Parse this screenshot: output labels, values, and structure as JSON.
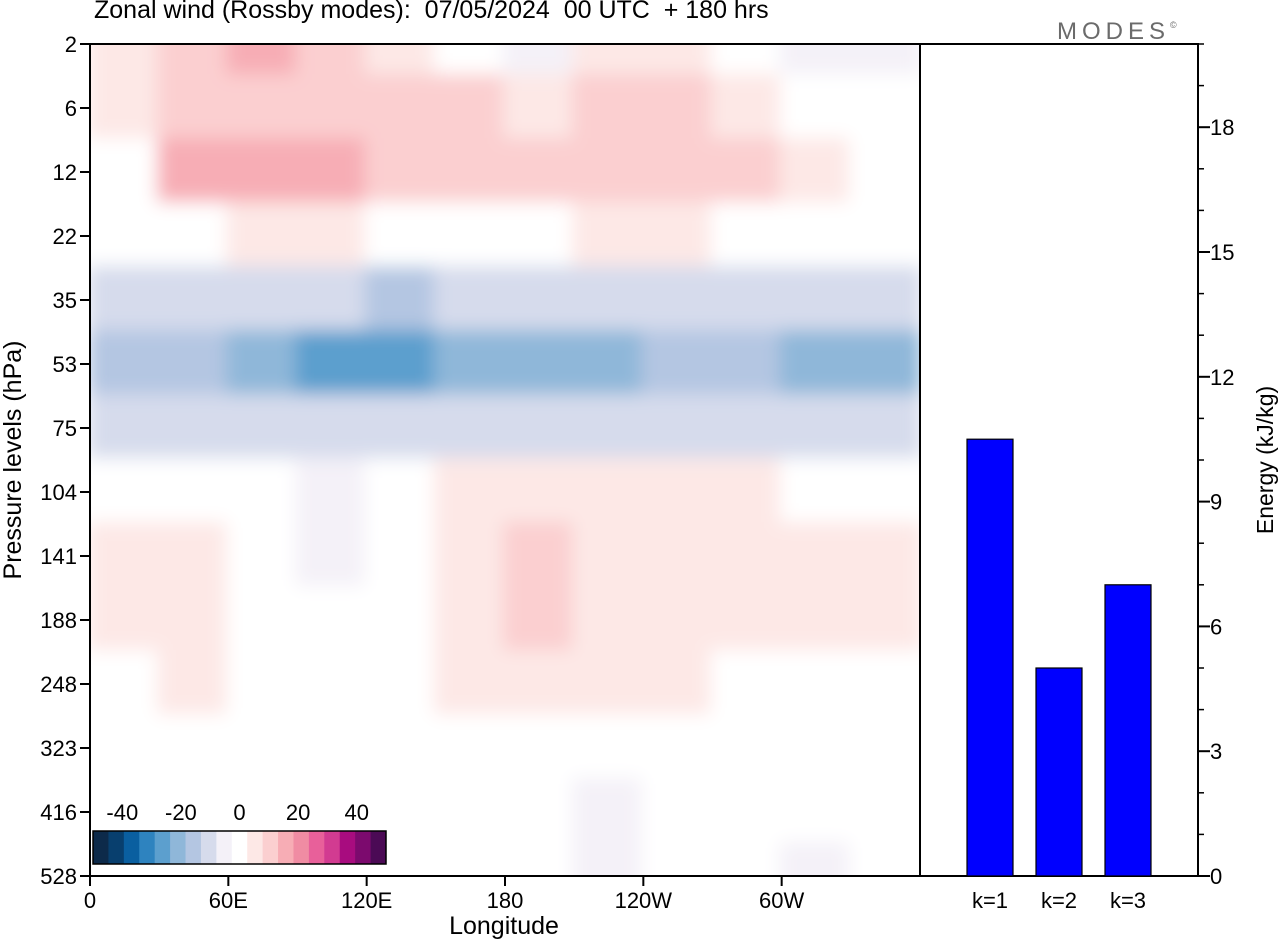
{
  "title": "Zonal wind (Rossby modes):  07/05/2024  00 UTC  + 180 hrs",
  "logo": {
    "text": "MODES",
    "mark": "©"
  },
  "chart_data": [
    {
      "type": "heatmap",
      "title": "Zonal wind (Rossby modes):  07/05/2024  00 UTC  + 180 hrs",
      "xlabel": "Longitude",
      "ylabel": "Pressure levels (hPa)",
      "x_ticks": [
        "0",
        "60E",
        "120E",
        "180",
        "120W",
        "60W"
      ],
      "x_tick_deg": [
        0,
        60,
        120,
        180,
        240,
        300
      ],
      "xlim_deg": [
        0,
        360
      ],
      "y_ticks": [
        "2",
        "6",
        "12",
        "22",
        "35",
        "53",
        "75",
        "104",
        "141",
        "188",
        "248",
        "323",
        "416",
        "528"
      ],
      "y_scale": "level-index",
      "colorbar": {
        "ticks": [
          "-40",
          "-20",
          "0",
          "20",
          "40"
        ],
        "tick_values": [
          -40,
          -20,
          0,
          20,
          40
        ],
        "range": [
          -50,
          50
        ],
        "colors": [
          "#0d2a4a",
          "#083f6e",
          "#0a5fa0",
          "#2e83bf",
          "#5c9fce",
          "#8fb7d9",
          "#b4c6e2",
          "#d6dbec",
          "#f4f1f8",
          "#ffffff",
          "#fde8e6",
          "#fbcfd0",
          "#f7adb5",
          "#f08ca3",
          "#e8609a",
          "#d23b91",
          "#a80c7f",
          "#7c0a6e",
          "#4b0a55"
        ]
      },
      "field_bands": [
        {
          "level": "2",
          "u": [
            6,
            12,
            14,
            8,
            4,
            -2,
            -6,
            4,
            6,
            2,
            -4,
            -6
          ]
        },
        {
          "level": "6",
          "u": [
            4,
            10,
            12,
            10,
            10,
            8,
            6,
            8,
            8,
            6,
            2,
            0
          ]
        },
        {
          "level": "12",
          "u": [
            2,
            14,
            16,
            16,
            10,
            8,
            8,
            10,
            10,
            8,
            4,
            2
          ]
        },
        {
          "level": "22",
          "u": [
            0,
            2,
            4,
            4,
            2,
            2,
            2,
            4,
            4,
            2,
            0,
            -2
          ]
        },
        {
          "level": "35",
          "u": [
            -12,
            -12,
            -12,
            -12,
            -14,
            -12,
            -12,
            -12,
            -12,
            -12,
            -12,
            -12
          ]
        },
        {
          "level": "53",
          "u": [
            -16,
            -18,
            -20,
            -28,
            -26,
            -22,
            -20,
            -20,
            -18,
            -18,
            -20,
            -20
          ]
        },
        {
          "level": "75",
          "u": [
            -8,
            -12,
            -12,
            -12,
            -12,
            -10,
            -10,
            -10,
            -10,
            -12,
            -12,
            -12
          ]
        },
        {
          "level": "104",
          "u": [
            2,
            2,
            -2,
            -6,
            0,
            4,
            6,
            4,
            4,
            6,
            2,
            2
          ]
        },
        {
          "level": "141",
          "u": [
            4,
            6,
            2,
            -4,
            2,
            6,
            12,
            6,
            6,
            6,
            4,
            4
          ]
        },
        {
          "level": "188",
          "u": [
            4,
            6,
            2,
            -2,
            2,
            6,
            10,
            6,
            6,
            6,
            4,
            4
          ]
        },
        {
          "level": "248",
          "u": [
            2,
            4,
            2,
            -2,
            2,
            4,
            6,
            4,
            4,
            2,
            2,
            2
          ]
        },
        {
          "level": "323",
          "u": [
            0,
            2,
            0,
            -2,
            0,
            2,
            2,
            0,
            2,
            0,
            0,
            2
          ]
        },
        {
          "level": "416",
          "u": [
            0,
            0,
            0,
            -2,
            0,
            0,
            0,
            -4,
            0,
            0,
            -2,
            0
          ]
        },
        {
          "level": "528",
          "u": [
            0,
            0,
            0,
            -2,
            0,
            0,
            0,
            -6,
            -2,
            0,
            -6,
            0
          ]
        }
      ]
    },
    {
      "type": "bar",
      "categories": [
        "k=1",
        "k=2",
        "k=3"
      ],
      "values": [
        10.5,
        5.0,
        7.0
      ],
      "ylabel": "Energy (kJ/kg)",
      "ylim": [
        0,
        20
      ],
      "y_ticks": [
        0,
        3,
        6,
        9,
        12,
        15,
        18
      ],
      "bar_color": "#0000ff",
      "axis_side": "right"
    }
  ]
}
